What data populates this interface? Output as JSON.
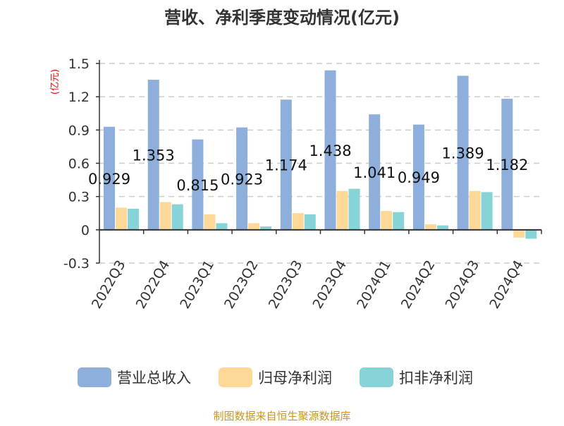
{
  "chart_data": {
    "type": "bar",
    "title": "营收、净利季度变动情况(亿元)",
    "ylabel": "(亿元)",
    "xlabel": "",
    "ylim": [
      -0.3,
      1.5
    ],
    "yticks": [
      1.5,
      1.2,
      0.9,
      0.6,
      0.3,
      0,
      -0.3
    ],
    "ytick_labels": [
      "1.5",
      "1.2",
      "0.9",
      "0.6",
      "0.3",
      "0",
      "-0.3"
    ],
    "grid": true,
    "legend_position": "bottom",
    "categories": [
      "2022Q3",
      "2022Q4",
      "2023Q1",
      "2023Q2",
      "2023Q3",
      "2023Q4",
      "2024Q1",
      "2024Q2",
      "2024Q3",
      "2024Q4"
    ],
    "series": [
      {
        "name": "营业总收入",
        "color": "#8eaedb",
        "values": [
          0.929,
          1.353,
          0.815,
          0.923,
          1.174,
          1.438,
          1.041,
          0.949,
          1.389,
          1.182
        ],
        "labels": [
          "0.929",
          "1.353",
          "0.815",
          "0.923",
          "1.174",
          "1.438",
          "1.041",
          "0.949",
          "1.389",
          "1.182"
        ]
      },
      {
        "name": "归母净利润",
        "color": "#fed897",
        "values": [
          0.2,
          0.25,
          0.14,
          0.06,
          0.15,
          0.35,
          0.17,
          0.05,
          0.35,
          -0.07
        ]
      },
      {
        "name": "扣非净利润",
        "color": "#86d4d8",
        "values": [
          0.19,
          0.23,
          0.06,
          0.03,
          0.14,
          0.37,
          0.16,
          0.04,
          0.34,
          -0.08
        ]
      }
    ]
  },
  "footer": "制图数据来自恒生聚源数据库"
}
